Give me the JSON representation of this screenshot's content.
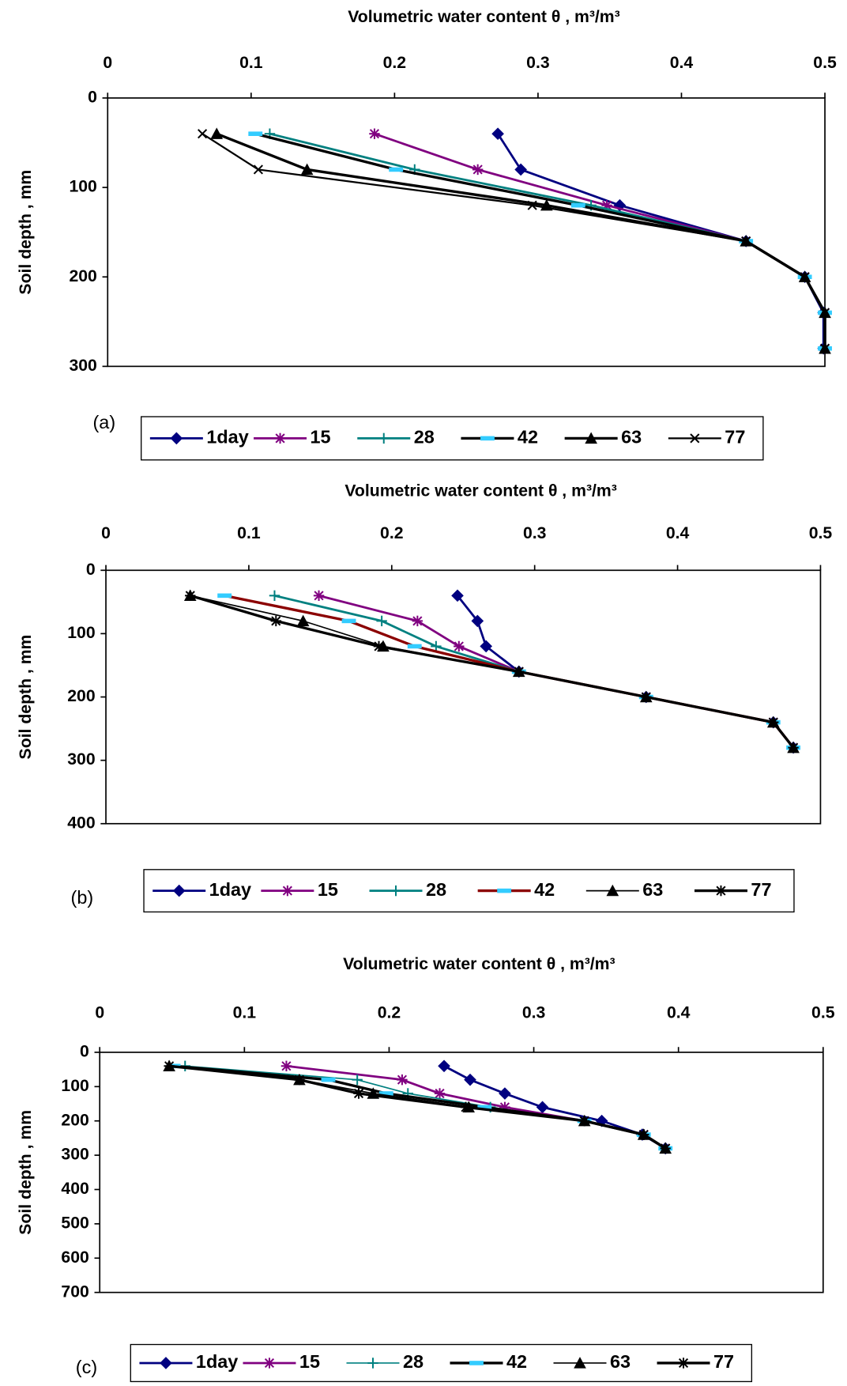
{
  "chart_data": [
    {
      "type": "line",
      "orientation": "horizontal",
      "title": "Volumetric water content θ , m³/m³",
      "y_label": "Soil depth , mm",
      "panel_label": "(a)",
      "x": [
        40,
        80,
        120,
        160,
        200,
        240,
        280
      ],
      "xlim": [
        0,
        0.5
      ],
      "xticks": [
        0,
        0.1,
        0.2,
        0.3,
        0.4,
        0.5
      ],
      "ylim": [
        0,
        300
      ],
      "yticks": [
        0,
        100,
        200,
        300
      ],
      "y_inverted": true,
      "grid": false,
      "series": [
        {
          "name": "1day",
          "color": "#000080",
          "marker": "diamond",
          "marker_color": "#000080",
          "line_width": 2.5,
          "values": [
            0.272,
            0.288,
            0.357,
            0.445,
            0.486,
            0.499,
            0.499
          ]
        },
        {
          "name": "15",
          "color": "#800080",
          "marker": "asterisk",
          "marker_color": "#800080",
          "line_width": 2.5,
          "values": [
            0.186,
            0.258,
            0.348,
            0.445,
            0.486,
            0.5,
            0.5
          ]
        },
        {
          "name": "28",
          "color": "#008080",
          "marker": "plus",
          "marker_color": "#008080",
          "line_width": 2.5,
          "values": [
            0.113,
            0.214,
            0.337,
            0.445,
            0.486,
            0.5,
            0.5
          ]
        },
        {
          "name": "42",
          "color": "#000000",
          "marker": "dash",
          "marker_color": "#33ccff",
          "line_width": 3,
          "values": [
            0.103,
            0.201,
            0.328,
            0.445,
            0.486,
            0.5,
            0.5
          ]
        },
        {
          "name": "63",
          "color": "#000000",
          "marker": "triangle",
          "marker_color": "#000000",
          "line_width": 3,
          "values": [
            0.076,
            0.139,
            0.306,
            0.445,
            0.486,
            0.5,
            0.5
          ]
        },
        {
          "name": "77",
          "color": "#000000",
          "marker": "x",
          "marker_color": "#000000",
          "line_width": 2,
          "values": [
            0.066,
            0.105,
            0.296,
            0.445,
            0.486,
            0.5,
            0.5
          ]
        }
      ]
    },
    {
      "type": "line",
      "orientation": "horizontal",
      "title": "Volumetric water content θ , m³/m³",
      "y_label": "Soil depth , mm",
      "panel_label": "(b)",
      "x": [
        40,
        80,
        120,
        160,
        200,
        240,
        280
      ],
      "xlim": [
        0,
        0.5
      ],
      "xticks": [
        0,
        0.1,
        0.2,
        0.3,
        0.4,
        0.5
      ],
      "ylim": [
        0,
        400
      ],
      "yticks": [
        0,
        100,
        200,
        300,
        400
      ],
      "y_inverted": true,
      "grid": false,
      "series": [
        {
          "name": "1day",
          "color": "#000080",
          "marker": "diamond",
          "marker_color": "#000080",
          "line_width": 2.5,
          "values": [
            0.246,
            0.26,
            0.266,
            0.289,
            0.378,
            0.467,
            0.481
          ]
        },
        {
          "name": "15",
          "color": "#800080",
          "marker": "asterisk",
          "marker_color": "#800080",
          "line_width": 2.5,
          "values": [
            0.149,
            0.218,
            0.247,
            0.289,
            0.378,
            0.467,
            0.481
          ]
        },
        {
          "name": "28",
          "color": "#008080",
          "marker": "plus",
          "marker_color": "#008080",
          "line_width": 2.5,
          "values": [
            0.118,
            0.193,
            0.231,
            0.289,
            0.378,
            0.467,
            0.481
          ]
        },
        {
          "name": "42",
          "color": "#8b0000",
          "marker": "dash",
          "marker_color": "#33ccff",
          "line_width": 3,
          "values": [
            0.083,
            0.17,
            0.216,
            0.289,
            0.378,
            0.467,
            0.481
          ]
        },
        {
          "name": "63",
          "color": "#000000",
          "marker": "triangle",
          "marker_color": "#000000",
          "line_width": 1.5,
          "values": [
            0.059,
            0.138,
            0.194,
            0.289,
            0.378,
            0.467,
            0.481
          ]
        },
        {
          "name": "77",
          "color": "#000000",
          "marker": "asterisk",
          "marker_color": "#000000",
          "line_width": 3,
          "values": [
            0.059,
            0.119,
            0.191,
            0.289,
            0.378,
            0.467,
            0.481
          ]
        }
      ]
    },
    {
      "type": "line",
      "orientation": "horizontal",
      "title": "Volumetric water content θ , m³/m³",
      "y_label": "Soil depth , mm",
      "panel_label": "(c)",
      "x": [
        40,
        80,
        120,
        160,
        200,
        240,
        280
      ],
      "xlim": [
        0,
        0.5
      ],
      "xticks": [
        0,
        0.1,
        0.2,
        0.3,
        0.4,
        0.5
      ],
      "ylim": [
        0,
        700
      ],
      "yticks": [
        0,
        100,
        200,
        300,
        400,
        500,
        600,
        700
      ],
      "y_inverted": true,
      "grid": false,
      "series": [
        {
          "name": "1day",
          "color": "#000080",
          "marker": "diamond",
          "marker_color": "#000080",
          "line_width": 2.5,
          "values": [
            0.238,
            0.256,
            0.28,
            0.306,
            0.347,
            0.375,
            0.391
          ]
        },
        {
          "name": "15",
          "color": "#800080",
          "marker": "asterisk",
          "marker_color": "#800080",
          "line_width": 2.5,
          "values": [
            0.129,
            0.209,
            0.235,
            0.28,
            0.335,
            0.376,
            0.391
          ]
        },
        {
          "name": "28",
          "color": "#008080",
          "marker": "plus",
          "marker_color": "#008080",
          "line_width": 1.5,
          "values": [
            0.059,
            0.178,
            0.213,
            0.27,
            0.335,
            0.376,
            0.391
          ]
        },
        {
          "name": "42",
          "color": "#000000",
          "marker": "dash",
          "marker_color": "#33ccff",
          "line_width": 3,
          "values": [
            0.051,
            0.158,
            0.198,
            0.266,
            0.335,
            0.376,
            0.391
          ]
        },
        {
          "name": "63",
          "color": "#000000",
          "marker": "triangle",
          "marker_color": "#000000",
          "line_width": 1.5,
          "values": [
            0.048,
            0.138,
            0.189,
            0.255,
            0.335,
            0.376,
            0.391
          ]
        },
        {
          "name": "77",
          "color": "#000000",
          "marker": "asterisk",
          "marker_color": "#000000",
          "line_width": 3,
          "values": [
            0.048,
            0.138,
            0.179,
            0.253,
            0.335,
            0.376,
            0.391
          ]
        }
      ]
    }
  ]
}
